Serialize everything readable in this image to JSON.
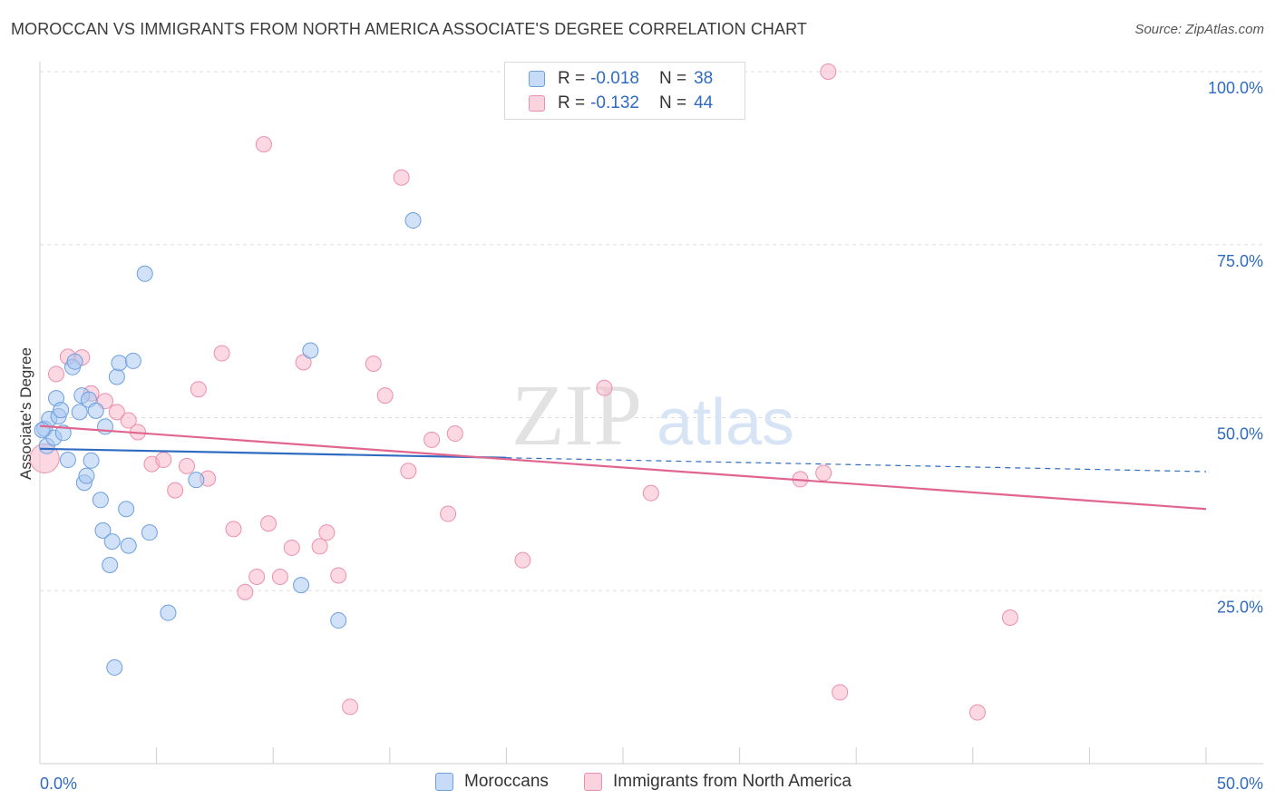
{
  "title": "MOROCCAN VS IMMIGRANTS FROM NORTH AMERICA ASSOCIATE'S DEGREE CORRELATION CHART",
  "source": "Source: ZipAtlas.com",
  "watermark": {
    "zip": "ZIP",
    "atlas": "atlas"
  },
  "legend": {
    "rows": [
      {
        "r_label": "R =",
        "r_value": "-0.018",
        "n_label": "N =",
        "n_value": "38",
        "color": "#a9c9f2"
      },
      {
        "r_label": "R =",
        "r_value": "-0.132",
        "n_label": "N =",
        "n_value": "44",
        "color": "#f7b8cb"
      }
    ]
  },
  "bottom_legend": [
    {
      "label": "Moroccans",
      "color": "#a9c9f2"
    },
    {
      "label": "Immigrants from North America",
      "color": "#f7b8cb"
    }
  ],
  "chart_data": {
    "type": "scatter",
    "title": "MOROCCAN VS IMMIGRANTS FROM NORTH AMERICA ASSOCIATE'S DEGREE CORRELATION CHART",
    "xlabel": "",
    "ylabel": "Associate's Degree",
    "xlim": [
      0,
      50
    ],
    "ylim": [
      0,
      100
    ],
    "x_tick_labels": [
      "0.0%",
      "50.0%"
    ],
    "y_tick_labels": [
      "100.0%",
      "75.0%",
      "50.0%",
      "25.0%"
    ],
    "y_ticks": [
      100,
      75,
      50,
      25
    ],
    "grid": true,
    "colors": {
      "blue": "#2f6bc0",
      "pink": "#e0668f",
      "blue_fill": "#a9c9f2",
      "pink_fill": "#f7b8cb"
    },
    "series": [
      {
        "name": "Moroccans",
        "R": -0.018,
        "N": 38,
        "trend": {
          "x": [
            0,
            20
          ],
          "y": [
            45.5,
            44.2
          ],
          "dashed_to": [
            50,
            42.2
          ]
        },
        "points": [
          [
            0.2,
            48.4
          ],
          [
            0.3,
            45.9
          ],
          [
            0.4,
            49.8
          ],
          [
            0.6,
            47.1
          ],
          [
            0.7,
            52.8
          ],
          [
            0.8,
            50.2
          ],
          [
            0.9,
            51.1
          ],
          [
            1.0,
            47.8
          ],
          [
            1.2,
            43.9
          ],
          [
            1.4,
            57.3
          ],
          [
            1.5,
            58.1
          ],
          [
            1.7,
            50.8
          ],
          [
            1.8,
            53.2
          ],
          [
            1.9,
            40.6
          ],
          [
            2.0,
            41.6
          ],
          [
            2.1,
            52.6
          ],
          [
            2.2,
            43.8
          ],
          [
            2.4,
            51.0
          ],
          [
            2.6,
            38.1
          ],
          [
            2.7,
            33.7
          ],
          [
            2.8,
            48.7
          ],
          [
            3.0,
            28.7
          ],
          [
            3.1,
            32.1
          ],
          [
            3.2,
            13.9
          ],
          [
            3.3,
            55.9
          ],
          [
            3.4,
            57.9
          ],
          [
            3.7,
            36.8
          ],
          [
            3.8,
            31.5
          ],
          [
            4.0,
            58.2
          ],
          [
            4.5,
            70.8
          ],
          [
            4.7,
            33.4
          ],
          [
            5.5,
            21.8
          ],
          [
            6.7,
            41.0
          ],
          [
            11.2,
            25.8
          ],
          [
            11.6,
            59.7
          ],
          [
            12.8,
            20.7
          ],
          [
            16.0,
            78.5
          ],
          [
            0.1,
            48.2
          ]
        ]
      },
      {
        "name": "Immigrants from North America",
        "R": -0.132,
        "N": 44,
        "trend": {
          "x": [
            0,
            50
          ],
          "y": [
            48.8,
            36.8
          ]
        },
        "points": [
          [
            0.2,
            44.1
          ],
          [
            0.7,
            56.3
          ],
          [
            1.2,
            58.8
          ],
          [
            1.8,
            58.7
          ],
          [
            2.2,
            53.5
          ],
          [
            2.8,
            52.4
          ],
          [
            3.3,
            50.8
          ],
          [
            3.8,
            49.6
          ],
          [
            4.2,
            47.9
          ],
          [
            4.8,
            43.3
          ],
          [
            5.3,
            43.9
          ],
          [
            5.8,
            39.5
          ],
          [
            6.3,
            43.0
          ],
          [
            6.8,
            54.1
          ],
          [
            7.2,
            41.2
          ],
          [
            7.8,
            59.3
          ],
          [
            8.3,
            33.9
          ],
          [
            8.8,
            24.8
          ],
          [
            9.3,
            27.0
          ],
          [
            9.6,
            89.5
          ],
          [
            9.8,
            34.7
          ],
          [
            10.3,
            27.0
          ],
          [
            10.8,
            31.2
          ],
          [
            11.3,
            58.0
          ],
          [
            12.0,
            31.4
          ],
          [
            12.3,
            33.4
          ],
          [
            12.8,
            27.2
          ],
          [
            13.3,
            8.2
          ],
          [
            14.3,
            57.8
          ],
          [
            14.8,
            53.2
          ],
          [
            15.5,
            84.7
          ],
          [
            15.8,
            42.3
          ],
          [
            16.8,
            46.8
          ],
          [
            17.5,
            36.1
          ],
          [
            17.8,
            47.7
          ],
          [
            20.7,
            29.4
          ],
          [
            24.2,
            54.3
          ],
          [
            26.2,
            39.1
          ],
          [
            32.6,
            41.1
          ],
          [
            33.6,
            42.0
          ],
          [
            33.8,
            100.0
          ],
          [
            34.3,
            10.3
          ],
          [
            40.2,
            7.4
          ],
          [
            41.6,
            21.1
          ]
        ]
      }
    ]
  }
}
